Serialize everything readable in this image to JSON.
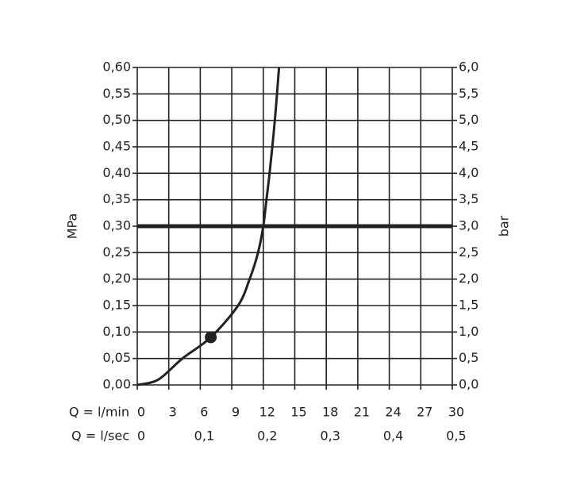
{
  "chart_data": {
    "type": "line",
    "y_label": "MPa",
    "y2_label": "bar",
    "x_row_label": "Q = l/min",
    "x2_row_label": "Q = l/sec",
    "x": [
      0,
      2,
      4.3,
      7,
      9.6,
      10.7,
      11.5,
      12,
      12.3,
      12.6,
      13.1,
      13.5
    ],
    "values": [
      0,
      0.01,
      0.05,
      0.09,
      0.15,
      0.2,
      0.25,
      0.3,
      0.35,
      0.4,
      0.5,
      0.6
    ],
    "color": "#222222",
    "marker": {
      "x": 7,
      "y": 0.09
    },
    "reference_y": 0.3,
    "reference_x": 12,
    "xlim": [
      0,
      30
    ],
    "xticks": [
      0,
      3,
      6,
      9,
      12,
      15,
      18,
      21,
      24,
      27,
      30
    ],
    "x2lim": [
      0,
      0.5
    ],
    "x2ticks": [
      0,
      {
        "value": 0.1,
        "label": "0,1"
      },
      {
        "value": 0.2,
        "label": "0,2"
      },
      {
        "value": 0.3,
        "label": "0,3"
      },
      {
        "value": 0.4,
        "label": "0,4"
      },
      {
        "value": 0.5,
        "label": "0,5"
      }
    ],
    "ylim": [
      0,
      0.6
    ],
    "yticks": [
      {
        "value": 0,
        "label": "0,00"
      },
      {
        "value": 0.05,
        "label": "0,05"
      },
      {
        "value": 0.1,
        "label": "0,10"
      },
      {
        "value": 0.15,
        "label": "0,15"
      },
      {
        "value": 0.2,
        "label": "0,20"
      },
      {
        "value": 0.25,
        "label": "0,25"
      },
      {
        "value": 0.3,
        "label": "0,30"
      },
      {
        "value": 0.35,
        "label": "0,35"
      },
      {
        "value": 0.4,
        "label": "0,40"
      },
      {
        "value": 0.45,
        "label": "0,45"
      },
      {
        "value": 0.5,
        "label": "0,50"
      },
      {
        "value": 0.55,
        "label": "0,55"
      },
      {
        "value": 0.6,
        "label": "0,60"
      }
    ],
    "y2lim": [
      0,
      6
    ],
    "y2ticks": [
      {
        "value": 0,
        "label": "0,0"
      },
      {
        "value": 0.5,
        "label": "0,5"
      },
      {
        "value": 1,
        "label": "1,0"
      },
      {
        "value": 1.5,
        "label": "1,5"
      },
      {
        "value": 2,
        "label": "2,0"
      },
      {
        "value": 2.5,
        "label": "2,5"
      },
      {
        "value": 3,
        "label": "3,0"
      },
      {
        "value": 3.5,
        "label": "3,5"
      },
      {
        "value": 4,
        "label": "4,0"
      },
      {
        "value": 4.5,
        "label": "4,5"
      },
      {
        "value": 5,
        "label": "5,0"
      },
      {
        "value": 5.5,
        "label": "5,5"
      },
      {
        "value": 6,
        "label": "6,0"
      }
    ],
    "grid": true
  }
}
